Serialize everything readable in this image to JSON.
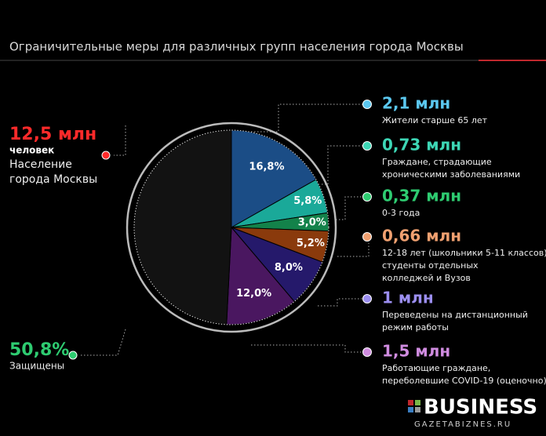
{
  "chart_data": {
    "type": "pie",
    "title": "Ограничительные меры для различных групп населения города Москвы",
    "slices": [
      {
        "value": 16.8,
        "label": "16,8%",
        "color": "#1b4d86"
      },
      {
        "value": 5.8,
        "label": "5,8%",
        "color": "#1aa999"
      },
      {
        "value": 3.0,
        "label": "3,0%",
        "color": "#13824a"
      },
      {
        "value": 5.2,
        "label": "5,2%",
        "color": "#8a3a0c"
      },
      {
        "value": 8.0,
        "label": "8,0%",
        "color": "#25196b"
      },
      {
        "value": 12.0,
        "label": "12,0%",
        "color": "#4a1760"
      },
      {
        "value": 49.2,
        "color": "#121212"
      }
    ],
    "callouts": [
      {
        "value": "2,1 млн",
        "color": "#5bc8f0",
        "lines": [
          "Жители старше 65 лет"
        ]
      },
      {
        "value": "0,73 млн",
        "color": "#3dd6b5",
        "lines": [
          "Граждане, страдающие",
          "хроническими заболеваниями"
        ]
      },
      {
        "value": "0,37 млн",
        "color": "#2ecc71",
        "lines": [
          "0-3 года"
        ]
      },
      {
        "value": "0,66 млн",
        "color": "#f0a070",
        "lines": [
          "12-18 лет (школьники 5-11 классов),",
          "студенты отдельных",
          "колледжей и Вузов"
        ]
      },
      {
        "value": "1 млн",
        "color": "#9b8ef0",
        "lines": [
          "Переведены на дистанционный",
          "режим работы"
        ]
      },
      {
        "value": "1,5 млн",
        "color": "#d08ce0",
        "lines": [
          "Работающие граждане,",
          "переболевшие COVID-19 (оценочно)"
        ]
      }
    ],
    "population": {
      "value": "12,5 млн",
      "unit": "человек",
      "lines": [
        "Население",
        "города Москвы"
      ]
    },
    "protected": {
      "value": "50,8%",
      "label": "Защищены"
    }
  },
  "logo": {
    "name": "BUSINESS",
    "site": "GAZETABIZNES.RU"
  }
}
